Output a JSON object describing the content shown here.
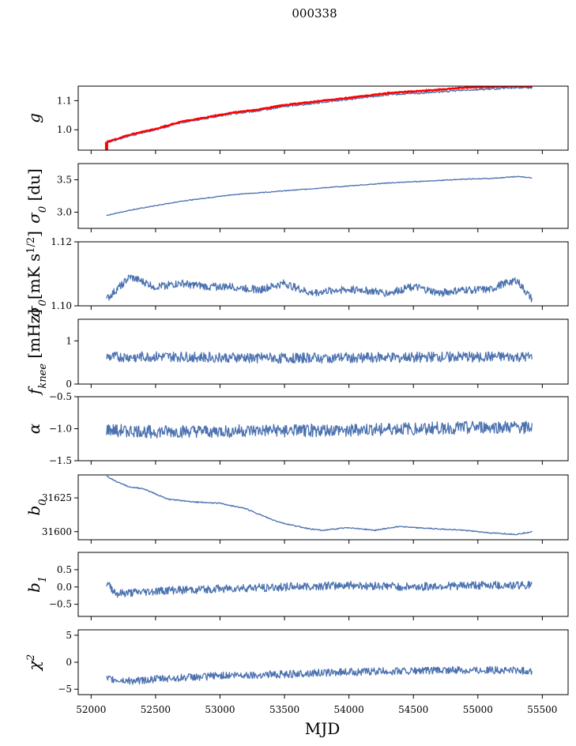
{
  "figure": {
    "title": "000338",
    "xlabel": "MJD"
  },
  "chart_data": [
    {
      "type": "line",
      "key": "g",
      "ylabel": "g",
      "ylabel_sub": "",
      "ylabel_unit": "",
      "xlim": [
        51900,
        55700
      ],
      "ylim": [
        0.93,
        1.15
      ],
      "yticks": [
        1.0,
        1.1
      ],
      "yticklabels": [
        "1.0",
        "1.1"
      ],
      "x": [
        52120,
        52300,
        52500,
        52700,
        52900,
        53100,
        53300,
        53500,
        53700,
        53900,
        54100,
        54300,
        54500,
        54700,
        54900,
        55100,
        55300,
        55420
      ],
      "y": [
        0.955,
        0.98,
        1.0,
        1.025,
        1.04,
        1.055,
        1.065,
        1.08,
        1.09,
        1.1,
        1.11,
        1.12,
        1.125,
        1.13,
        1.137,
        1.14,
        1.145,
        1.145
      ],
      "noise": 0.003,
      "series": [
        {
          "values": [
            0.958,
            0.983,
            1.003,
            1.028,
            1.043,
            1.059,
            1.07,
            1.085,
            1.095,
            1.105,
            1.115,
            1.126,
            1.132,
            1.138,
            1.145,
            1.148,
            1.15,
            1.148
          ],
          "color": "#ff0000"
        }
      ]
    },
    {
      "type": "line",
      "key": "sigma0_du",
      "ylabel": "σ",
      "ylabel_sub": "0",
      "ylabel_unit": " [du]",
      "xlim": [
        51900,
        55700
      ],
      "ylim": [
        2.75,
        3.75
      ],
      "yticks": [
        3.0,
        3.5
      ],
      "yticklabels": [
        "3.0",
        "3.5"
      ],
      "x": [
        52120,
        52300,
        52500,
        52700,
        52900,
        53100,
        53300,
        53500,
        53700,
        53900,
        54100,
        54300,
        54500,
        54700,
        54900,
        55100,
        55300,
        55420
      ],
      "y": [
        2.95,
        3.03,
        3.1,
        3.17,
        3.22,
        3.27,
        3.3,
        3.33,
        3.36,
        3.39,
        3.42,
        3.45,
        3.47,
        3.49,
        3.51,
        3.52,
        3.55,
        3.53
      ],
      "noise": 0.006
    },
    {
      "type": "line",
      "key": "sigma0_mk",
      "ylabel": "σ",
      "ylabel_sub": "0",
      "ylabel_unit": "[mK s",
      "ylabel_sup": "1/2",
      "ylabel_end": "]",
      "xlim": [
        51900,
        55700
      ],
      "ylim": [
        1.1,
        1.12
      ],
      "yticks": [
        1.1,
        1.12
      ],
      "yticklabels": [
        "1.10",
        "1.12"
      ],
      "x": [
        52120,
        52300,
        52500,
        52700,
        52900,
        53100,
        53300,
        53500,
        53700,
        53900,
        54100,
        54300,
        54500,
        54700,
        54900,
        55100,
        55200,
        55300,
        55420
      ],
      "y": [
        1.102,
        1.109,
        1.106,
        1.107,
        1.106,
        1.106,
        1.105,
        1.107,
        1.104,
        1.105,
        1.105,
        1.104,
        1.106,
        1.104,
        1.105,
        1.105,
        1.107,
        1.108,
        1.102
      ],
      "noise": 0.0012
    },
    {
      "type": "line",
      "key": "fknee",
      "ylabel": "f",
      "ylabel_sub": "knee",
      "ylabel_unit": " [mHz]",
      "xlim": [
        51900,
        55700
      ],
      "ylim": [
        0,
        1.5
      ],
      "yticks": [
        0,
        1
      ],
      "yticklabels": [
        "0",
        "1"
      ],
      "x": [
        52120,
        52500,
        53000,
        53500,
        54000,
        54500,
        55000,
        55420
      ],
      "y": [
        0.62,
        0.63,
        0.62,
        0.6,
        0.61,
        0.62,
        0.63,
        0.62
      ],
      "noise": 0.12
    },
    {
      "type": "line",
      "key": "alpha",
      "ylabel": "α",
      "ylabel_sub": "",
      "ylabel_unit": "",
      "xlim": [
        51900,
        55700
      ],
      "ylim": [
        -1.5,
        -0.5
      ],
      "yticks": [
        -1.5,
        -1.0,
        -0.5
      ],
      "yticklabels": [
        "−1.5",
        "−1.0",
        "−0.5"
      ],
      "x": [
        52120,
        52500,
        53000,
        53500,
        54000,
        54500,
        55000,
        55420
      ],
      "y": [
        -1.02,
        -1.05,
        -1.04,
        -1.03,
        -1.02,
        -1.0,
        -0.98,
        -0.98
      ],
      "noise": 0.1
    },
    {
      "type": "line",
      "key": "b0",
      "ylabel": "b",
      "ylabel_sub": "0",
      "ylabel_unit": "",
      "xlim": [
        51900,
        55700
      ],
      "ylim": [
        31594,
        31642
      ],
      "yticks": [
        31600,
        31625
      ],
      "yticklabels": [
        "31600",
        "31625"
      ],
      "x": [
        52120,
        52200,
        52300,
        52400,
        52500,
        52600,
        52800,
        53000,
        53200,
        53400,
        53500,
        53700,
        53800,
        54000,
        54200,
        54400,
        54500,
        54700,
        54900,
        55000,
        55100,
        55300,
        55420
      ],
      "y": [
        31641,
        31637,
        31633,
        31632,
        31628,
        31624,
        31622,
        31621,
        31617,
        31609,
        31606,
        31602,
        31601,
        31603,
        31601,
        31604,
        31603,
        31602,
        31601,
        31600,
        31599,
        31598,
        31600
      ],
      "noise": 0.4
    },
    {
      "type": "line",
      "key": "b1",
      "ylabel": "b",
      "ylabel_sub": "1",
      "ylabel_unit": "",
      "xlim": [
        51900,
        55700
      ],
      "ylim": [
        -0.85,
        1.0
      ],
      "yticks": [
        -0.5,
        0.0,
        0.5
      ],
      "yticklabels": [
        "−0.5",
        "0.0",
        "0.5"
      ],
      "x": [
        52120,
        52200,
        52400,
        52600,
        53000,
        53500,
        54000,
        54500,
        55000,
        55420
      ],
      "y": [
        0.1,
        -0.2,
        -0.15,
        -0.1,
        -0.05,
        0.0,
        0.05,
        0.0,
        0.05,
        0.05
      ],
      "noise": 0.12
    },
    {
      "type": "line",
      "key": "chi2",
      "ylabel": "χ",
      "ylabel_sub": "",
      "ylabel_sup": "2",
      "ylabel_unit": "",
      "xlim": [
        51900,
        55700
      ],
      "ylim": [
        -6,
        6
      ],
      "yticks": [
        -5,
        0,
        5
      ],
      "yticklabels": [
        "−5",
        "0",
        "5"
      ],
      "x": [
        52120,
        52300,
        52600,
        53000,
        53500,
        54000,
        54500,
        55000,
        55420
      ],
      "y": [
        -3.2,
        -3.5,
        -3.0,
        -2.5,
        -2.2,
        -1.8,
        -1.6,
        -1.4,
        -1.6
      ],
      "noise": 0.7
    }
  ],
  "xaxis": {
    "ticks": [
      52000,
      52500,
      53000,
      53500,
      54000,
      54500,
      55000,
      55500
    ],
    "ticklabels": [
      "52000",
      "52500",
      "53000",
      "53500",
      "54000",
      "54500",
      "55000",
      "55500"
    ]
  }
}
